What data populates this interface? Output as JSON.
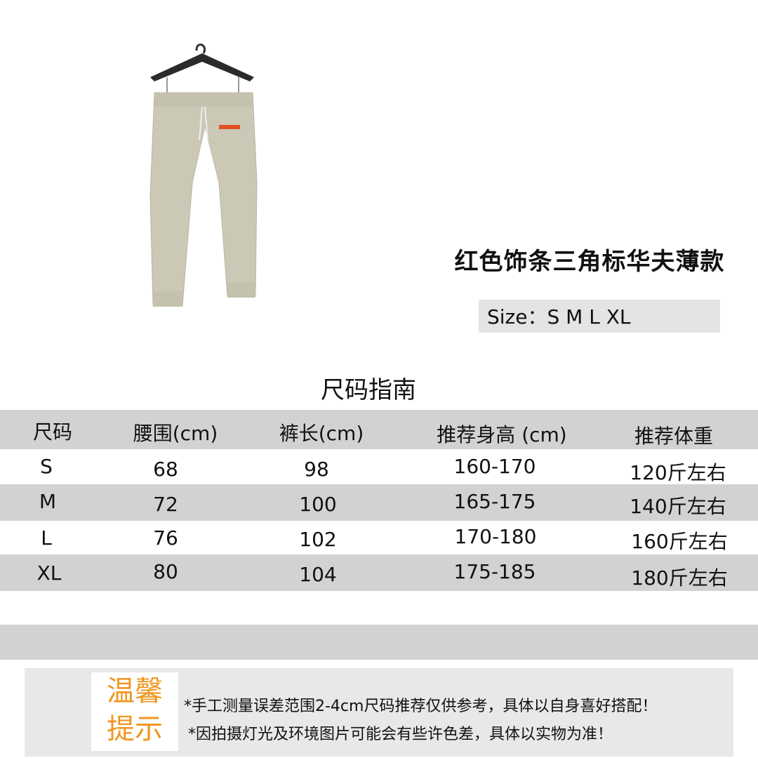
{
  "product": {
    "title": "红色饰条三角标华夫薄款",
    "sizes_label": "Size：S M L XL",
    "colors": {
      "pants": "#cbc8b6",
      "stripe": "#e0501e"
    }
  },
  "size_guide": {
    "title": "尺码指南",
    "headers": [
      "尺码",
      "腰围(cm)",
      "裤长(cm)",
      "推荐身高 (cm)",
      "推荐体重"
    ],
    "rows": [
      [
        "S",
        "68",
        "98",
        "160-170",
        "120斤左右"
      ],
      [
        "M",
        "72",
        "100",
        "165-175",
        "140斤左右"
      ],
      [
        "L",
        "76",
        "102",
        "170-180",
        "160斤左右"
      ],
      [
        "XL",
        "80",
        "104",
        "175-185",
        "180斤左右"
      ]
    ]
  },
  "notes": {
    "label_line1": "温馨",
    "label_line2": "提示",
    "label_color": "#f0961e",
    "lines": [
      "*手工测量误差范围2-4cm尺码推荐仅供参考，具体以自身喜好搭配！",
      "*因拍摄灯光及环境图片可能会有些许色差，具体以实物为准！"
    ]
  }
}
